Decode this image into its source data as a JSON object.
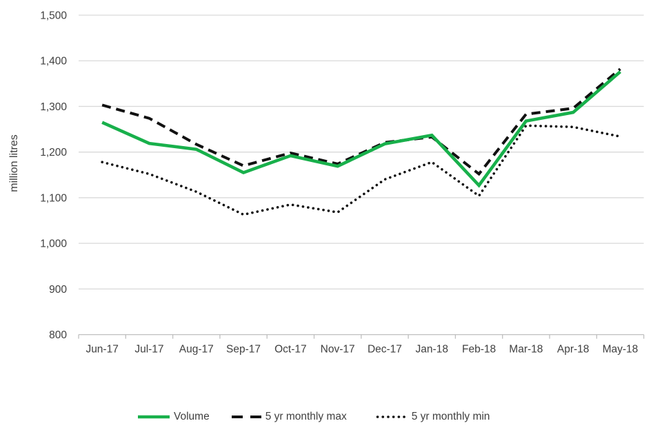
{
  "chart_data": {
    "type": "line",
    "title": "",
    "xlabel": "",
    "ylabel": "million litres",
    "ylim": [
      800,
      1500
    ],
    "y_tick_step": 100,
    "grid": "horizontal",
    "legend_position": "bottom",
    "categories": [
      "Jun-17",
      "Jul-17",
      "Aug-17",
      "Sep-17",
      "Oct-17",
      "Nov-17",
      "Dec-17",
      "Jan-18",
      "Feb-18",
      "Mar-18",
      "Apr-18",
      "May-18"
    ],
    "series": [
      {
        "name": "Volume",
        "style": "solid",
        "color": "#18B04B",
        "values": [
          1265,
          1219,
          1206,
          1155,
          1192,
          1169,
          1218,
          1237,
          1127,
          1268,
          1287,
          1376
        ]
      },
      {
        "name": "5 yr monthly max",
        "style": "dashed",
        "color": "#111111",
        "values": [
          1303,
          1274,
          1217,
          1170,
          1198,
          1174,
          1221,
          1233,
          1152,
          1283,
          1296,
          1382
        ]
      },
      {
        "name": "5 yr monthly min",
        "style": "dotted",
        "color": "#111111",
        "values": [
          1178,
          1152,
          1113,
          1063,
          1085,
          1068,
          1140,
          1178,
          1104,
          1258,
          1255,
          1234
        ]
      }
    ]
  },
  "colors": {
    "grid": "#D9D9D9",
    "axis": "#BFBFBF",
    "text": "#404040"
  }
}
